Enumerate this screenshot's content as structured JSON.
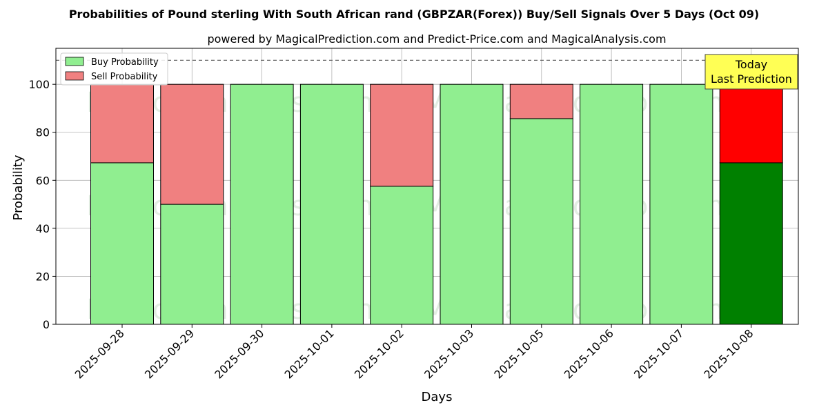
{
  "chart_data": {
    "type": "bar",
    "stacked": true,
    "title": "Probabilities of Pound sterling With South African rand (GBPZAR(Forex)) Buy/Sell Signals Over 5 Days (Oct 09)",
    "subtitle": "powered by MagicalPrediction.com and Predict-Price.com and MagicalAnalysis.com",
    "xlabel": "Days",
    "ylabel": "Probability",
    "ylim": [
      0,
      115
    ],
    "yticks": [
      0,
      20,
      40,
      60,
      80,
      100
    ],
    "grid": true,
    "legend_position": "top-left",
    "reference_line": 110,
    "categories": [
      "2025-09-28",
      "2025-09-29",
      "2025-09-30",
      "2025-10-01",
      "2025-10-02",
      "2025-10-03",
      "2025-10-05",
      "2025-10-06",
      "2025-10-07",
      "2025-10-08"
    ],
    "series": [
      {
        "name": "Buy Probability",
        "color": "#90ee90",
        "values": [
          67.3,
          50.0,
          100,
          100,
          57.5,
          100,
          85.7,
          100,
          100,
          67.3
        ]
      },
      {
        "name": "Sell Probability",
        "color": "#f08080",
        "values": [
          32.7,
          50.0,
          0,
          0,
          42.5,
          0,
          14.3,
          0,
          0,
          32.7
        ]
      }
    ],
    "highlight": {
      "index": 9,
      "buy_color": "#008000",
      "sell_color": "#ff0000"
    },
    "annotation": {
      "lines": [
        "Today",
        "Last Prediction"
      ],
      "background": "#ffff55"
    },
    "watermarks": [
      "MagicalAnalysis.com",
      "MagicalPrediction.com"
    ]
  }
}
